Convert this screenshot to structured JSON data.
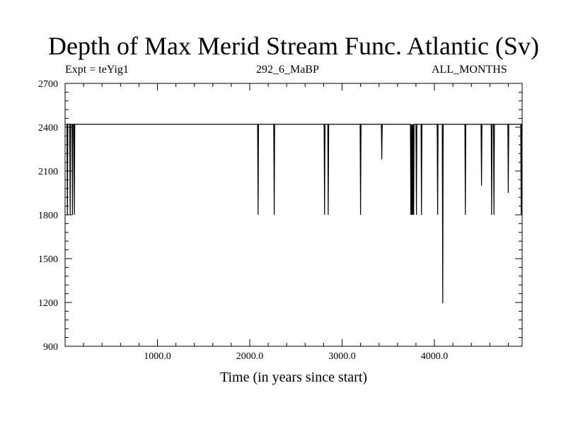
{
  "chart_data": {
    "type": "line",
    "title": "Depth of Max Merid Stream Func. Atlantic (Sv)",
    "subtitle_left": "Expt = teYig1",
    "subtitle_center": "292_6_MaBP",
    "subtitle_right": "ALL_MONTHS",
    "xlabel": "Time (in years since start)",
    "ylabel": "",
    "xlim": [
      0,
      4950
    ],
    "ylim": [
      900,
      2700
    ],
    "x_ticks": [
      1000,
      2000,
      3000,
      4000
    ],
    "x_tick_labels": [
      "1000.0",
      "2000.0",
      "3000.0",
      "4000.0"
    ],
    "y_ticks": [
      900,
      1200,
      1500,
      1800,
      2100,
      2400,
      2700
    ],
    "y_tick_labels": [
      "900",
      "1200",
      "1500",
      "1800",
      "2100",
      "2400",
      "2700"
    ],
    "grid": false,
    "baseline": 2420,
    "color": "#000000",
    "series": [
      {
        "x": [
          0,
          20,
          25,
          30,
          50,
          55,
          60,
          75,
          80,
          85,
          95,
          100,
          105,
          2085,
          2090,
          2095,
          2260,
          2265,
          2270,
          2805,
          2810,
          2815,
          2845,
          2850,
          2855,
          3195,
          3200,
          3205,
          3425,
          3430,
          3435,
          3740,
          3745,
          3750,
          3755,
          3760,
          3765,
          3770,
          3775,
          3780,
          3800,
          3805,
          3810,
          3855,
          3860,
          3865,
          4030,
          4035,
          4040,
          4085,
          4090,
          4095,
          4330,
          4335,
          4340,
          4505,
          4510,
          4515,
          4615,
          4620,
          4625,
          4640,
          4645,
          4650,
          4795,
          4800,
          4805,
          4935,
          4940,
          4945,
          4950
        ],
        "y": [
          2420,
          2420,
          1800,
          2420,
          2420,
          1800,
          2420,
          2420,
          1800,
          2420,
          2420,
          1800,
          2420,
          2420,
          1800,
          2420,
          2420,
          1800,
          2420,
          2420,
          1800,
          2420,
          2420,
          1800,
          2420,
          2420,
          1800,
          2420,
          2420,
          2180,
          2420,
          2420,
          1800,
          2420,
          1800,
          2420,
          1800,
          2420,
          1800,
          2420,
          2420,
          1800,
          2420,
          2420,
          1800,
          2420,
          2420,
          1800,
          2420,
          2420,
          1195,
          2420,
          2420,
          1800,
          2420,
          2420,
          2000,
          2420,
          2420,
          1800,
          2420,
          2420,
          1800,
          2420,
          2420,
          1950,
          2420,
          2420,
          1800,
          2420,
          2420
        ]
      }
    ]
  }
}
